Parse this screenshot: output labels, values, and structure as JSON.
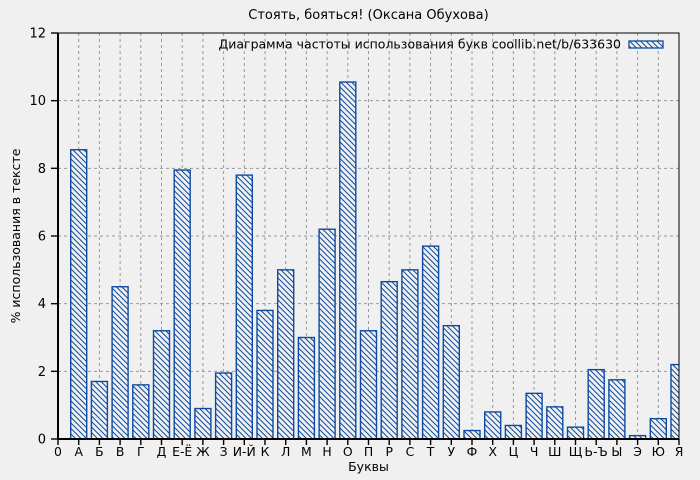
{
  "title": "Стоять, бояться! (Оксана Обухова)",
  "legend": {
    "label": "Диаграмма частоты использования букв coollib.net/b/633630"
  },
  "axes": {
    "xlabel": "Буквы",
    "ylabel": "% использования в тексте",
    "x_tick_labels": [
      "0",
      "А",
      "Б",
      "В",
      "Г",
      "Д",
      "Е-Ё",
      "Ж",
      "З",
      "И-Й",
      "К",
      "Л",
      "М",
      "Н",
      "О",
      "П",
      "Р",
      "С",
      "Т",
      "У",
      "Ф",
      "Х",
      "Ц",
      "Ч",
      "Ш",
      "Щ",
      "Ь-Ъ",
      "Ы",
      "Э",
      "Ю",
      "Я"
    ],
    "y_tick_labels": [
      "0",
      "2",
      "4",
      "6",
      "8",
      "10",
      "12"
    ]
  },
  "colors": {
    "bar": "#0d4ba2",
    "grid": "#999999",
    "axis": "#000000",
    "background": "#f0f0f0",
    "plot_background": "#f0f0f0",
    "text": "#000000"
  },
  "chart_data": {
    "type": "bar",
    "title": "Стоять, бояться! (Оксана Обухова)",
    "legend_label": "Диаграмма частоты использования букв coollib.net/b/633630",
    "legend_position": "top-right",
    "categories": [
      "А",
      "Б",
      "В",
      "Г",
      "Д",
      "Е-Ё",
      "Ж",
      "З",
      "И-Й",
      "К",
      "Л",
      "М",
      "Н",
      "О",
      "П",
      "Р",
      "С",
      "Т",
      "У",
      "Ф",
      "Х",
      "Ц",
      "Ч",
      "Ш",
      "Щ",
      "Ь-Ъ",
      "Ы",
      "Э",
      "Ю",
      "Я"
    ],
    "values": [
      8.55,
      1.7,
      4.5,
      1.6,
      3.2,
      7.95,
      0.9,
      1.95,
      7.8,
      3.8,
      5.0,
      3.0,
      6.2,
      10.55,
      3.2,
      4.65,
      5.0,
      5.7,
      3.35,
      0.25,
      0.8,
      0.4,
      1.35,
      0.95,
      0.35,
      2.05,
      1.75,
      0.1,
      0.6,
      2.2
    ],
    "xlabel": "Буквы",
    "ylabel": "% использования в тексте",
    "ylim": [
      0,
      12
    ],
    "y_tick_step": 2,
    "grid": true,
    "grid_style": "dashed",
    "hatch": "backslash-diagonal"
  }
}
